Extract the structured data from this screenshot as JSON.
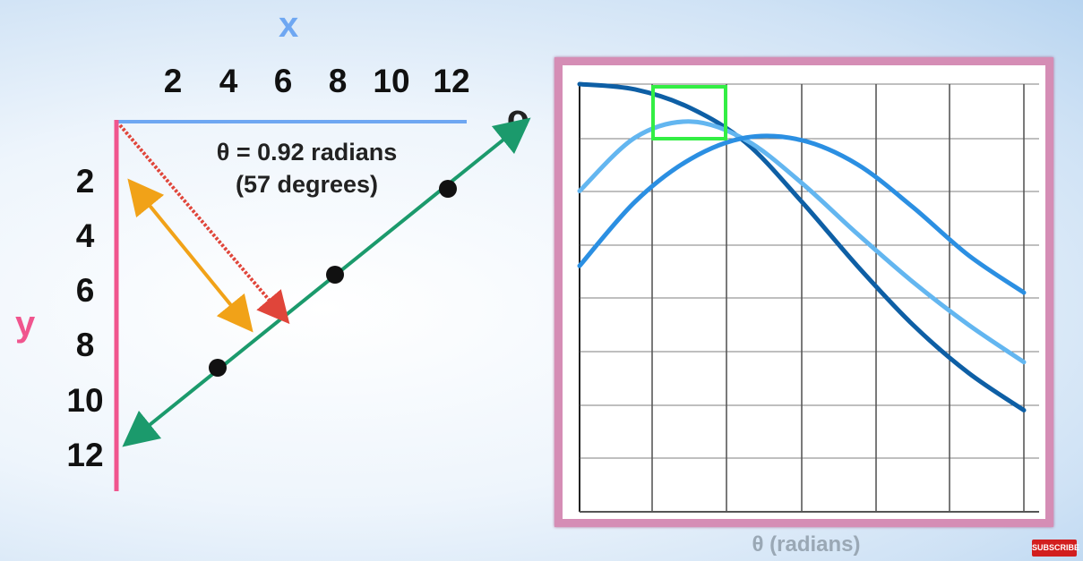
{
  "diagram": {
    "x_label": "x",
    "y_label": "y",
    "x_ticks": [
      "2",
      "4",
      "6",
      "8",
      "10",
      "12"
    ],
    "y_ticks": [
      "2",
      "4",
      "6",
      "8",
      "10",
      "12"
    ],
    "rho_label": "ρ",
    "theta_line1": "θ = 0.92 radians",
    "theta_line2": "(57 degrees)",
    "colors": {
      "x_axis": "#6ea7f2",
      "y_axis": "#f0558e",
      "line": "#1b9a6c",
      "perpendicular": "#e0453a",
      "distance_arrow": "#f1a218",
      "point": "#111111"
    }
  },
  "chart_data": {
    "type": "line",
    "xlabel": "θ (radians)",
    "ylabel": "",
    "grid": true,
    "series": [
      {
        "values": [
          0.0,
          0.1,
          0.45,
          1.1,
          2.2,
          3.4,
          4.5,
          5.4,
          6.1
        ]
      },
      {
        "values": [
          2.0,
          1.0,
          0.7,
          1.05,
          1.85,
          2.8,
          3.7,
          4.5,
          5.2
        ]
      },
      {
        "values": [
          3.4,
          2.2,
          1.4,
          1.0,
          1.05,
          1.5,
          2.3,
          3.2,
          3.9
        ]
      }
    ],
    "series_colors": [
      "#0e5fa5",
      "#63b6f0",
      "#2b8fe2"
    ],
    "highlight_color": "#33ee44"
  },
  "badge": {
    "subscribe": "SUBSCRIBE"
  }
}
